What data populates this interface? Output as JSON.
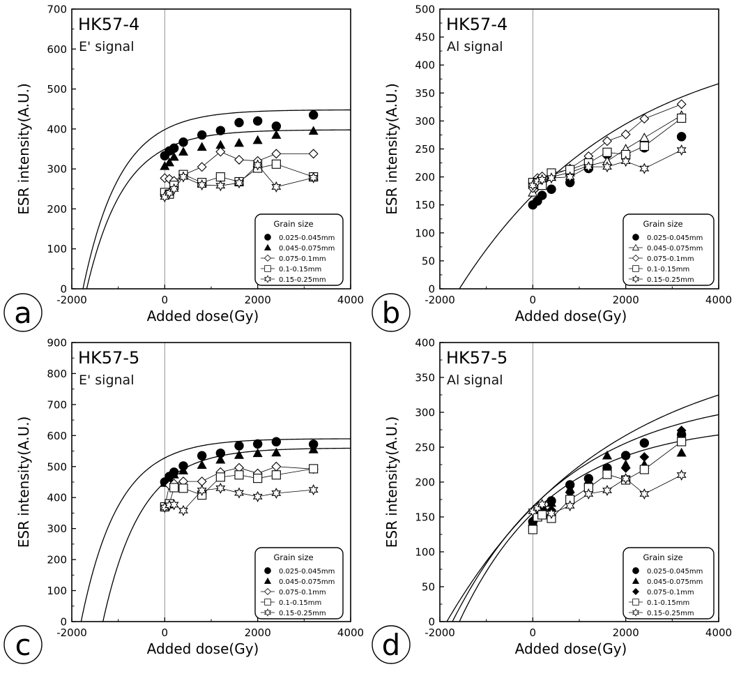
{
  "figure": {
    "shared": {
      "xlabel": "Added dose(Gy)",
      "ylabel": "ESR intensity(A.U.)",
      "xlim": [
        -2000,
        4000
      ],
      "xticks": [
        "-2000",
        "0",
        "2000",
        "4000"
      ],
      "legend_title": "Grain size",
      "grain_sizes": [
        "0.025-0.045mm",
        "0.045-0.075mm",
        "0.075-0.1mm",
        "0.1-0.15mm",
        "0.15-0.25mm"
      ],
      "axis_color": "#000000",
      "zero_line_color": "#888888"
    }
  },
  "chart_data": [
    {
      "panel": "a",
      "type": "scatter",
      "title": "HK57-4",
      "subtitle": "E' signal",
      "xlabel": "Added dose(Gy)",
      "ylabel": "ESR intensity(A.U.)",
      "xlim": [
        -2000,
        4000
      ],
      "ylim": [
        0,
        700
      ],
      "yticks": [
        "0",
        "100",
        "200",
        "300",
        "400",
        "500",
        "600",
        "700"
      ],
      "legend_title": "Grain size",
      "markers": [
        "circle-filled",
        "triangle-filled",
        "diamond-open",
        "square-open",
        "star-open"
      ],
      "series": [
        {
          "name": "0.025-0.045mm",
          "x": [
            0,
            100,
            200,
            400,
            800,
            1200,
            1600,
            2000,
            2400,
            3200
          ],
          "y": [
            333,
            345,
            352,
            367,
            385,
            396,
            416,
            420,
            407,
            435
          ]
        },
        {
          "name": "0.045-0.075mm",
          "x": [
            0,
            100,
            200,
            400,
            800,
            1200,
            1600,
            2000,
            2400,
            3200
          ],
          "y": [
            307,
            316,
            330,
            343,
            355,
            360,
            365,
            372,
            385,
            395
          ]
        },
        {
          "name": "0.075-0.1mm",
          "x": [
            0,
            100,
            200,
            400,
            800,
            1200,
            1600,
            2000,
            2400,
            3200
          ],
          "y": [
            277,
            275,
            270,
            285,
            305,
            343,
            323,
            320,
            338,
            338
          ]
        },
        {
          "name": "0.1-0.15mm",
          "x": [
            0,
            100,
            200,
            400,
            800,
            1200,
            1600,
            2000,
            2400,
            3200
          ],
          "y": [
            241,
            237,
            259,
            286,
            266,
            280,
            268,
            302,
            312,
            280
          ]
        },
        {
          "name": "0.15-0.25mm",
          "x": [
            0,
            100,
            200,
            400,
            800,
            1200,
            1600,
            2000,
            2400,
            3200
          ],
          "y": [
            230,
            240,
            250,
            280,
            260,
            258,
            265,
            310,
            255,
            278
          ]
        }
      ],
      "fits": [
        {
          "series": "0.025-0.045mm",
          "model": "saturating-exponential",
          "x_range": [
            -1760,
            4000
          ],
          "y_max": 448,
          "x0": -1760,
          "d0": 800
        },
        {
          "series": "0.045-0.075mm",
          "model": "saturating-exponential",
          "x_range": [
            -1680,
            4000
          ],
          "y_max": 398,
          "x0": -1680,
          "d0": 800
        }
      ]
    },
    {
      "panel": "b",
      "type": "scatter",
      "title": "HK57-4",
      "subtitle": "Al signal",
      "xlabel": "Added dose(Gy)",
      "ylabel": "ESR intensity(A.U.)",
      "xlim": [
        -2000,
        4000
      ],
      "ylim": [
        0,
        500
      ],
      "yticks": [
        "0",
        "50",
        "100",
        "150",
        "200",
        "250",
        "300",
        "350",
        "400",
        "450",
        "500"
      ],
      "legend_title": "Grain size",
      "markers": [
        "circle-filled",
        "triangle-open",
        "diamond-open",
        "square-open",
        "star-open"
      ],
      "series": [
        {
          "name": "0.025-0.045mm",
          "x": [
            0,
            100,
            200,
            400,
            800,
            1200,
            1600,
            2000,
            2400,
            3200
          ],
          "y": [
            150,
            157,
            167,
            178,
            190,
            215,
            240,
            238,
            252,
            272
          ]
        },
        {
          "name": "0.045-0.075mm",
          "x": [
            0,
            100,
            200,
            400,
            800,
            1200,
            1600,
            2000,
            2400,
            3200
          ],
          "y": [
            172,
            185,
            193,
            200,
            208,
            220,
            228,
            250,
            270,
            310
          ]
        },
        {
          "name": "0.075-0.1mm",
          "x": [
            0,
            100,
            200,
            400,
            800,
            1200,
            1600,
            2000,
            2400,
            3200
          ],
          "y": [
            180,
            198,
            201,
            202,
            215,
            237,
            264,
            276,
            304,
            330
          ]
        },
        {
          "name": "0.1-0.15mm",
          "x": [
            0,
            100,
            200,
            400,
            800,
            1200,
            1600,
            2000,
            2400,
            3200
          ],
          "y": [
            190,
            188,
            185,
            207,
            213,
            225,
            244,
            240,
            255,
            305
          ]
        },
        {
          "name": "0.15-0.25mm",
          "x": [
            0,
            100,
            200,
            400,
            800,
            1200,
            1600,
            2000,
            2400,
            3200
          ],
          "y": [
            185,
            192,
            195,
            198,
            200,
            218,
            218,
            228,
            215,
            248
          ]
        }
      ],
      "fits": [
        {
          "series": "0.025-0.045mm",
          "model": "saturating-exponential",
          "x_range": [
            -1580,
            4000
          ],
          "y_max": 460,
          "x0": -1580,
          "d0": 3500
        }
      ]
    },
    {
      "panel": "c",
      "type": "scatter",
      "title": "HK57-5",
      "subtitle": "E' signal",
      "xlabel": "Added dose(Gy)",
      "ylabel": "ESR intensity(A.U.)",
      "xlim": [
        -2000,
        4000
      ],
      "ylim": [
        0,
        900
      ],
      "yticks": [
        "0",
        "100",
        "200",
        "300",
        "400",
        "500",
        "600",
        "700",
        "800",
        "900"
      ],
      "legend_title": "Grain size",
      "markers": [
        "circle-filled",
        "triangle-filled",
        "diamond-open",
        "square-open",
        "star-open"
      ],
      "series": [
        {
          "name": "0.025-0.045mm",
          "x": [
            0,
            100,
            200,
            400,
            800,
            1200,
            1600,
            2000,
            2400,
            3200
          ],
          "y": [
            450,
            468,
            482,
            502,
            535,
            543,
            567,
            573,
            580,
            572
          ]
        },
        {
          "name": "0.045-0.075mm",
          "x": [
            0,
            100,
            200,
            400,
            800,
            1200,
            1600,
            2000,
            2400,
            3200
          ],
          "y": [
            447,
            460,
            474,
            487,
            505,
            522,
            537,
            543,
            545,
            555
          ]
        },
        {
          "name": "0.075-0.1mm",
          "x": [
            0,
            100,
            200,
            400,
            800,
            1200,
            1600,
            2000,
            2400,
            3200
          ],
          "y": [
            370,
            440,
            445,
            452,
            452,
            482,
            496,
            478,
            500,
            492
          ]
        },
        {
          "name": "0.1-0.15mm",
          "x": [
            0,
            100,
            200,
            400,
            800,
            1200,
            1600,
            2000,
            2400,
            3200
          ],
          "y": [
            370,
            380,
            432,
            430,
            408,
            466,
            473,
            462,
            473,
            493
          ]
        },
        {
          "name": "0.15-0.25mm",
          "x": [
            0,
            100,
            200,
            400,
            800,
            1200,
            1600,
            2000,
            2400,
            3200
          ],
          "y": [
            368,
            375,
            377,
            358,
            423,
            430,
            415,
            403,
            414,
            425
          ]
        }
      ],
      "fits": [
        {
          "series": "0.025-0.045mm",
          "model": "saturating-exponential",
          "x_range": [
            -1800,
            4000
          ],
          "y_max": 590,
          "x0": -1800,
          "d0": 800
        },
        {
          "series": "0.045-0.075mm",
          "model": "saturating-exponential",
          "x_range": [
            -1330,
            4000
          ],
          "y_max": 560,
          "x0": -1330,
          "d0": 820
        }
      ]
    },
    {
      "panel": "d",
      "type": "scatter",
      "title": "HK57-5",
      "subtitle": "Al signal",
      "xlabel": "Added dose(Gy)",
      "ylabel": "ESR intensity(A.U.)",
      "xlim": [
        -2000,
        4000
      ],
      "ylim": [
        0,
        400
      ],
      "yticks": [
        "0",
        "50",
        "100",
        "150",
        "200",
        "250",
        "300",
        "350",
        "400"
      ],
      "legend_title": "Grain size",
      "markers": [
        "circle-filled",
        "triangle-filled",
        "diamond-filled",
        "square-open",
        "star-open"
      ],
      "series": [
        {
          "name": "0.025-0.045mm",
          "x": [
            0,
            100,
            200,
            400,
            800,
            1200,
            1600,
            2000,
            2400,
            3200
          ],
          "y": [
            143,
            150,
            160,
            173,
            196,
            205,
            220,
            238,
            256,
            268
          ]
        },
        {
          "name": "0.045-0.075mm",
          "x": [
            0,
            100,
            200,
            400,
            800,
            1200,
            1600,
            2000,
            2400,
            3200
          ],
          "y": [
            143,
            150,
            155,
            170,
            190,
            200,
            238,
            225,
            225,
            242
          ]
        },
        {
          "name": "0.075-0.1mm",
          "x": [
            0,
            100,
            200,
            400,
            800,
            1200,
            1600,
            2000,
            2400,
            3200
          ],
          "y": [
            145,
            152,
            158,
            160,
            185,
            198,
            215,
            220,
            236,
            274
          ]
        },
        {
          "name": "0.1-0.15mm",
          "x": [
            0,
            100,
            200,
            400,
            800,
            1200,
            1600,
            2000,
            2400,
            3200
          ],
          "y": [
            132,
            150,
            153,
            148,
            175,
            192,
            211,
            203,
            218,
            258
          ]
        },
        {
          "name": "0.15-0.25mm",
          "x": [
            0,
            100,
            200,
            400,
            800,
            1200,
            1600,
            2000,
            2400,
            3200
          ],
          "y": [
            158,
            163,
            168,
            155,
            166,
            183,
            188,
            205,
            183,
            210
          ]
        }
      ],
      "fits": [
        {
          "series": "0.025-0.045mm",
          "model": "saturating-exponential",
          "x_range": [
            -1850,
            4000
          ],
          "y_max": 400,
          "x0": -1850,
          "d0": 3500
        },
        {
          "series": "0.075-0.1mm",
          "model": "saturating-exponential",
          "x_range": [
            -1730,
            4000
          ],
          "y_max": 330,
          "x0": -1730,
          "d0": 2500
        },
        {
          "series": "0.045-0.075mm",
          "model": "saturating-exponential",
          "x_range": [
            -1580,
            4000
          ],
          "y_max": 285,
          "x0": -1580,
          "d0": 2000
        }
      ]
    }
  ]
}
